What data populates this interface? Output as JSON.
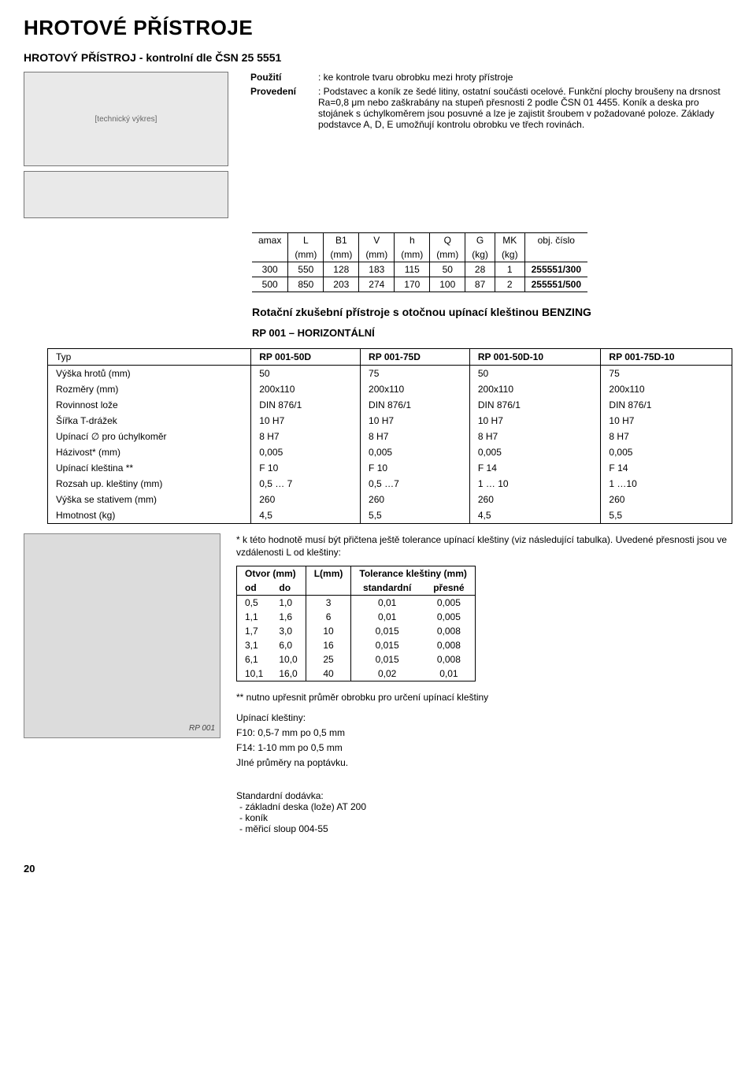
{
  "title": "HROTOVÉ PŘÍSTROJE",
  "subtitle": "HROTOVÝ PŘÍSTROJ - kontrolní dle ČSN 25 5551",
  "use_label": "Použití",
  "use_text": ": ke kontrole tvaru obrobku mezi hroty přístroje",
  "make_label": "Provedení",
  "make_text": ": Podstavec a koník ze šedé litiny, ostatní součásti ocelové. Funkční plochy broušeny na drsnost Ra=0,8 μm nebo zaškrabány na stupeň přesnosti 2 podle ČSN 01 4455. Koník a deska pro stojánek s úchylkoměrem jsou posuvné a lze je zajistit šroubem v požadované poloze. Základy podstavce A, D, E umožňují kontrolu obrobku ve třech rovinách.",
  "diagram_label": "[technický výkres]",
  "t1": {
    "headers": [
      "amax",
      "L",
      "B1",
      "V",
      "h",
      "Q",
      "G",
      "MK",
      "obj. číslo"
    ],
    "units": [
      "",
      "(mm)",
      "(mm)",
      "(mm)",
      "(mm)",
      "(mm)",
      "(kg)",
      "(kg)",
      ""
    ],
    "rows": [
      [
        "300",
        "550",
        "128",
        "183",
        "115",
        "50",
        "28",
        "1",
        "255551/300"
      ],
      [
        "500",
        "850",
        "203",
        "274",
        "170",
        "100",
        "87",
        "2",
        "255551/500"
      ]
    ]
  },
  "sect2_title": "Rotační zkušební přístroje s otočnou upínací kleštinou BENZING",
  "sect2_sub": "RP 001 – HORIZONTÁLNÍ",
  "t2": {
    "headers": [
      "Typ",
      "RP 001-50D",
      "RP 001-75D",
      "RP 001-50D-10",
      "RP 001-75D-10"
    ],
    "rows": [
      [
        "Výška hrotů (mm)",
        "50",
        "75",
        "50",
        "75"
      ],
      [
        "Rozměry (mm)",
        "200x110",
        "200x110",
        "200x110",
        "200x110"
      ],
      [
        "Rovinnost lože",
        "DIN 876/1",
        "DIN 876/1",
        "DIN 876/1",
        "DIN 876/1"
      ],
      [
        "Šířka T-drážek",
        "10 H7",
        "10 H7",
        "10 H7",
        "10 H7"
      ],
      [
        "Upínací ∅ pro úchylkoměr",
        "8 H7",
        "8 H7",
        "8 H7",
        "8 H7"
      ],
      [
        "Házivost* (mm)",
        "0,005",
        "0,005",
        "0,005",
        "0,005"
      ],
      [
        "Upínací kleština **",
        "F 10",
        "F 10",
        "F 14",
        "F 14"
      ],
      [
        "Rozsah up. kleštiny (mm)",
        "0,5 … 7",
        "0,5 …7",
        "1 … 10",
        "1 …10"
      ],
      [
        "Výška se stativem (mm)",
        "260",
        "260",
        "260",
        "260"
      ],
      [
        "Hmotnost (kg)",
        "4,5",
        "5,5",
        "4,5",
        "5,5"
      ]
    ]
  },
  "photo_caption": "RP 001",
  "note_star": "* k této hodnotě musí být přičtena ještě tolerance upínací kleštiny (viz následující tabulka). Uvedené přesnosti jsou ve vzdálenosti L od kleštiny:",
  "t3": {
    "h1": [
      "Otvor (mm)",
      "L(mm)",
      "Tolerance kleštiny (mm)"
    ],
    "h2": [
      "od",
      "do",
      "",
      "standardní",
      "přesné"
    ],
    "rows": [
      [
        "0,5",
        "1,0",
        "3",
        "0,01",
        "0,005"
      ],
      [
        "1,1",
        "1,6",
        "6",
        "0,01",
        "0,005"
      ],
      [
        "1,7",
        "3,0",
        "10",
        "0,015",
        "0,008"
      ],
      [
        "3,1",
        "6,0",
        "16",
        "0,015",
        "0,008"
      ],
      [
        "6,1",
        "10,0",
        "25",
        "0,015",
        "0,008"
      ],
      [
        "10,1",
        "16,0",
        "40",
        "0,02",
        "0,01"
      ]
    ]
  },
  "note_dstar": "** nutno upřesnit průměr obrobku pro určení upínací kleštiny",
  "collets": {
    "title": "Upínací kleštiny:",
    "lines": [
      "F10: 0,5-7 mm po 0,5 mm",
      "F14: 1-10 mm po 0,5 mm",
      "JIné průměry na poptávku."
    ]
  },
  "std_delivery": {
    "title": "Standardní dodávka:",
    "items": [
      "základní deska (lože) AT 200",
      "koník",
      "měřicí sloup 004-55"
    ]
  },
  "page_number": "20"
}
